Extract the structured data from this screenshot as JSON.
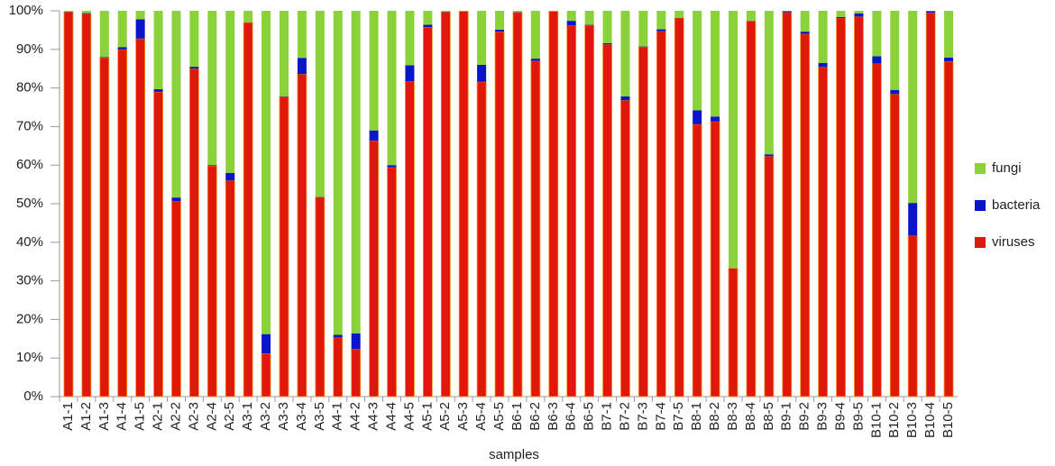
{
  "chart_data": {
    "type": "stacked_bar",
    "x_label": "samples",
    "categories": [
      "A1-1",
      "A1-2",
      "A1-3",
      "A1-4",
      "A1-5",
      "A2-1",
      "A2-2",
      "A2-3",
      "A2-4",
      "A2-5",
      "A3-1",
      "A3-2",
      "A3-3",
      "A3-4",
      "A3-5",
      "A4-1",
      "A4-2",
      "A4-3",
      "A4-4",
      "A4-5",
      "A5-1",
      "A5-2",
      "A5-3",
      "A5-4",
      "A5-5",
      "B6-1",
      "B6-2",
      "B6-3",
      "B6-4",
      "B6-5",
      "B7-1",
      "B7-2",
      "B7-3",
      "B7-4",
      "B7-5",
      "B8-1",
      "B8-2",
      "B8-3",
      "B8-4",
      "B8-5",
      "B9-1",
      "B9-2",
      "B9-3",
      "B9-4",
      "B9-5",
      "B10-1",
      "B10-2",
      "B10-3",
      "B10-4",
      "B10-5"
    ],
    "series": [
      {
        "name": "viruses",
        "color": "#e0180c",
        "values": [
          99.7,
          99.2,
          87.8,
          90,
          92.8,
          79,
          50.6,
          85,
          59.8,
          56,
          97,
          11.2,
          77.7,
          83.6,
          51.7,
          15.3,
          12.3,
          66.3,
          59.4,
          81.7,
          95.8,
          99.7,
          99.9,
          81.6,
          94.6,
          99.6,
          87,
          99.9,
          96.2,
          96.3,
          91.3,
          76.8,
          90.7,
          94.7,
          98.2,
          70.6,
          71.3,
          33.3,
          97.3,
          62.3,
          99.6,
          94,
          85.4,
          98.1,
          98.5,
          86.3,
          78.4,
          41.7,
          99.5,
          86.9
        ]
      },
      {
        "name": "bacteria",
        "color": "#0a14c8",
        "values": [
          0.1,
          0.2,
          0.2,
          0.6,
          5,
          0.7,
          1,
          0.5,
          0.2,
          2,
          0,
          5,
          0.1,
          4.2,
          0.1,
          0.7,
          4.1,
          2.7,
          0.6,
          4.2,
          0.6,
          0.1,
          0,
          4.4,
          0.5,
          0.1,
          0.6,
          0,
          1.2,
          0.1,
          0.3,
          1,
          0.1,
          0.5,
          0,
          3.6,
          1.3,
          0,
          0.1,
          0.5,
          0.3,
          0.6,
          1.1,
          0.3,
          0.8,
          1.9,
          1.1,
          8.5,
          0.4,
          1
        ]
      },
      {
        "name": "fungi",
        "color": "#8bd23a",
        "values": [
          0.2,
          0.6,
          12,
          9.4,
          2.2,
          20.3,
          48.4,
          14.5,
          40,
          42,
          3,
          83.8,
          22.2,
          12.2,
          48.2,
          84,
          83.6,
          31,
          40,
          14.1,
          3.6,
          0.2,
          0.1,
          14,
          4.9,
          0.3,
          12.4,
          0.1,
          2.6,
          3.6,
          8.4,
          22.2,
          9.2,
          4.8,
          1.8,
          25.8,
          27.4,
          66.7,
          2.6,
          37.2,
          0.1,
          5.4,
          13.5,
          1.6,
          0.7,
          11.8,
          20.5,
          49.8,
          0.1,
          12.1
        ]
      }
    ],
    "ylim": [
      0,
      100
    ],
    "yticks": [
      {
        "value": 0,
        "label": "0%"
      },
      {
        "value": 10,
        "label": "10%"
      },
      {
        "value": 20,
        "label": "20%"
      },
      {
        "value": 30,
        "label": "30%"
      },
      {
        "value": 40,
        "label": "40%"
      },
      {
        "value": 50,
        "label": "50%"
      },
      {
        "value": 60,
        "label": "60%"
      },
      {
        "value": 70,
        "label": "70%"
      },
      {
        "value": 80,
        "label": "80%"
      },
      {
        "value": 90,
        "label": "90%"
      },
      {
        "value": 100,
        "label": "100%"
      }
    ],
    "grid": false,
    "legend": "right"
  }
}
